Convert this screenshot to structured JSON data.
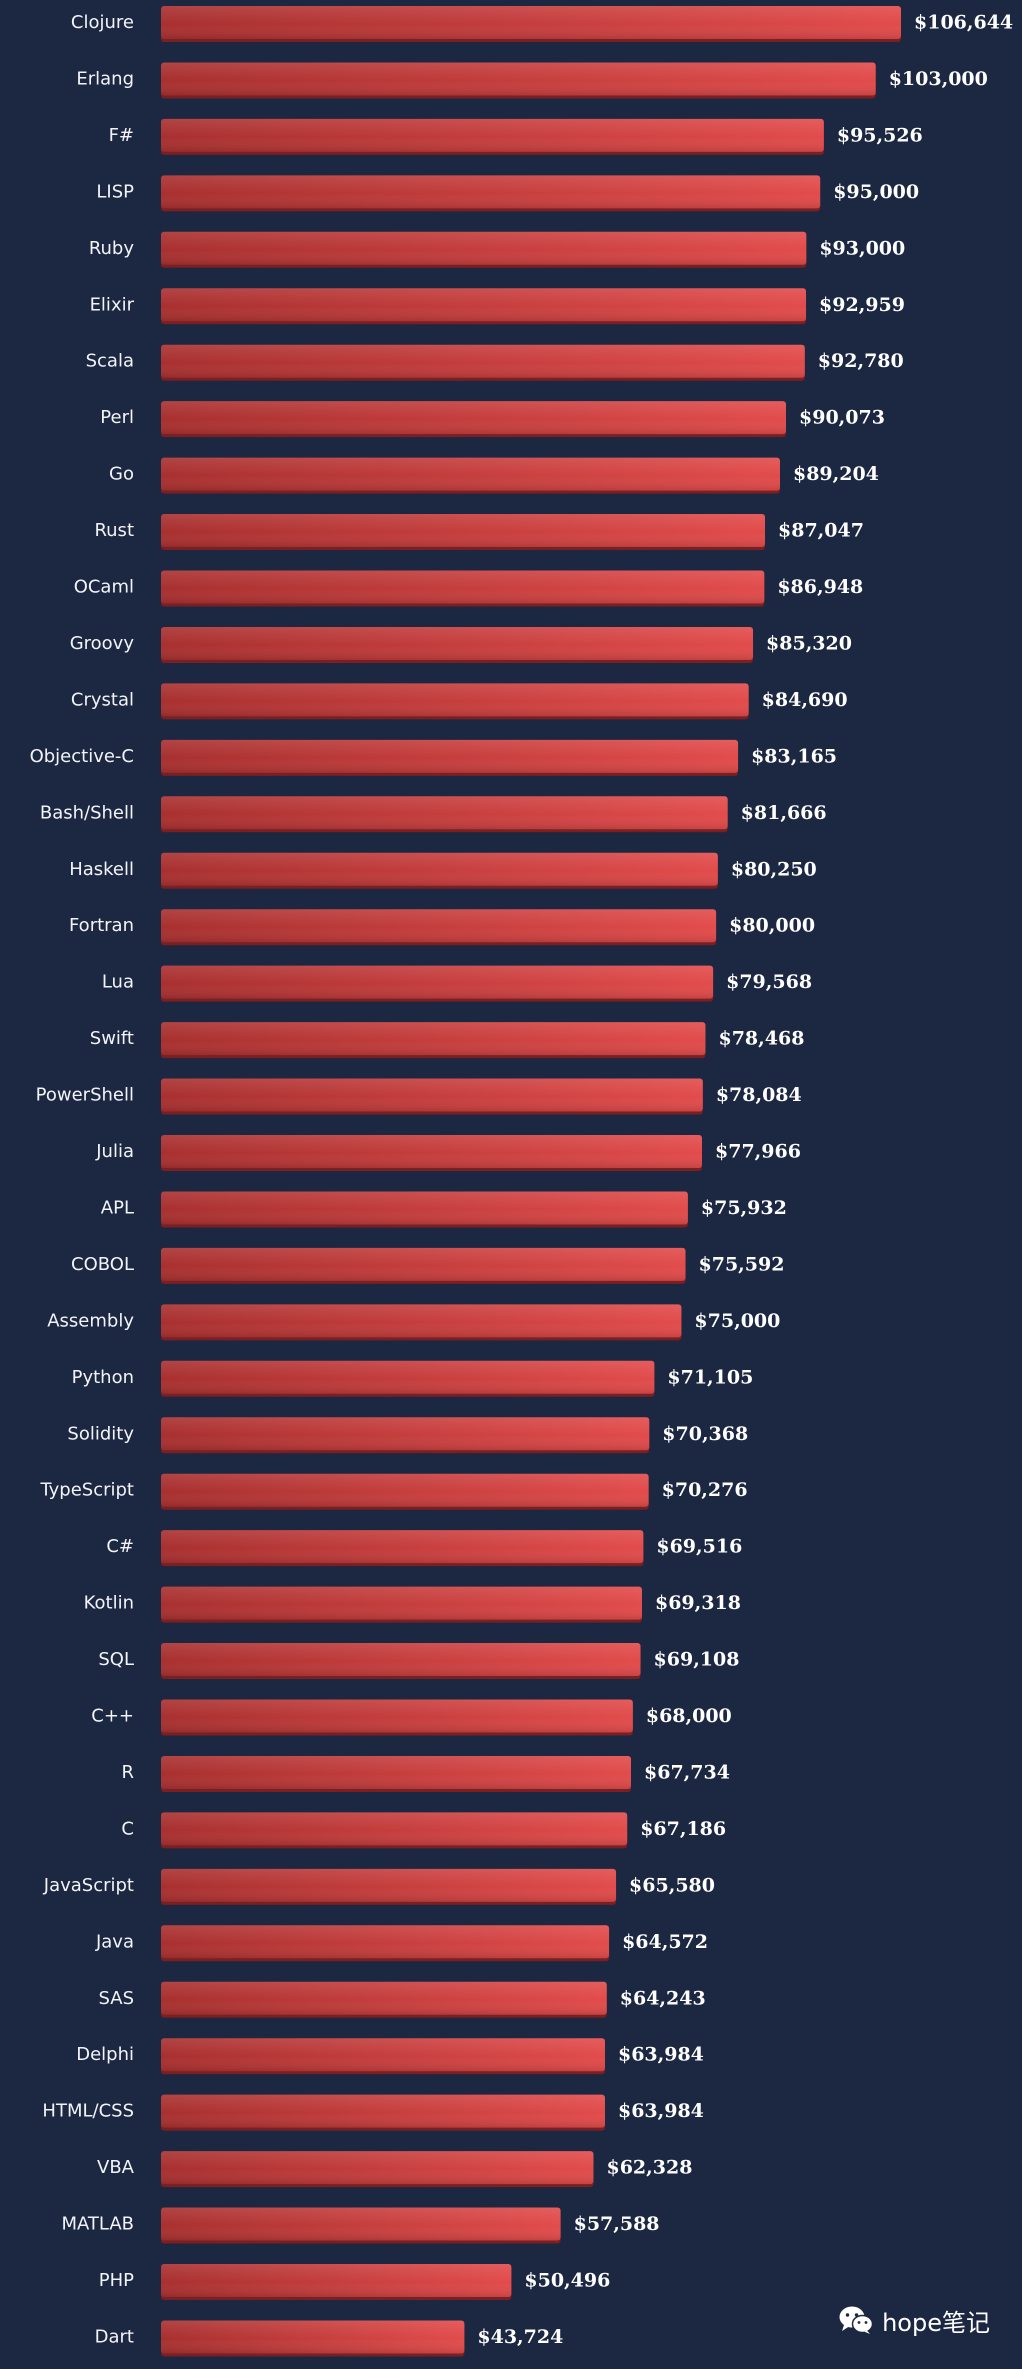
{
  "chart_data": {
    "type": "bar",
    "orientation": "horizontal",
    "value_prefix": "$",
    "bar_color_start": "#a8302f",
    "bar_color_end": "#e24b4b",
    "background_color": "#1c2742",
    "categories": [
      "Clojure",
      "Erlang",
      "F#",
      "LISP",
      "Ruby",
      "Elixir",
      "Scala",
      "Perl",
      "Go",
      "Rust",
      "OCaml",
      "Groovy",
      "Crystal",
      "Objective-C",
      "Bash/Shell",
      "Haskell",
      "Fortran",
      "Lua",
      "Swift",
      "PowerShell",
      "Julia",
      "APL",
      "COBOL",
      "Assembly",
      "Python",
      "Solidity",
      "TypeScript",
      "C#",
      "Kotlin",
      "SQL",
      "C++",
      "R",
      "C",
      "JavaScript",
      "Java",
      "SAS",
      "Delphi",
      "HTML/CSS",
      "VBA",
      "MATLAB",
      "PHP",
      "Dart"
    ],
    "values": [
      106644,
      103000,
      95526,
      95000,
      93000,
      92959,
      92780,
      90073,
      89204,
      87047,
      86948,
      85320,
      84690,
      83165,
      81666,
      80250,
      80000,
      79568,
      78468,
      78084,
      77966,
      75932,
      75592,
      75000,
      71105,
      70368,
      70276,
      69516,
      69318,
      69108,
      68000,
      67734,
      67186,
      65580,
      64572,
      64243,
      63984,
      63984,
      62328,
      57588,
      50496,
      43724
    ],
    "value_labels": [
      "$106,644",
      "$103,000",
      "$95,526",
      "$95,000",
      "$93,000",
      "$92,959",
      "$92,780",
      "$90,073",
      "$89,204",
      "$87,047",
      "$86,948",
      "$85,320",
      "$84,690",
      "$83,165",
      "$81,666",
      "$80,250",
      "$80,000",
      "$79,568",
      "$78,468",
      "$78,084",
      "$77,966",
      "$75,932",
      "$75,592",
      "$75,000",
      "$71,105",
      "$70,368",
      "$70,276",
      "$69,516",
      "$69,318",
      "$69,108",
      "$68,000",
      "$67,734",
      "$67,186",
      "$65,580",
      "$64,572",
      "$64,243",
      "$63,984",
      "$63,984",
      "$62,328",
      "$57,588",
      "$50,496",
      "$43,724"
    ],
    "xlim": [
      0,
      106644
    ],
    "title": "",
    "xlabel": "",
    "ylabel": ""
  },
  "watermark": {
    "text": "hope笔记",
    "icon": "wechat-icon"
  }
}
